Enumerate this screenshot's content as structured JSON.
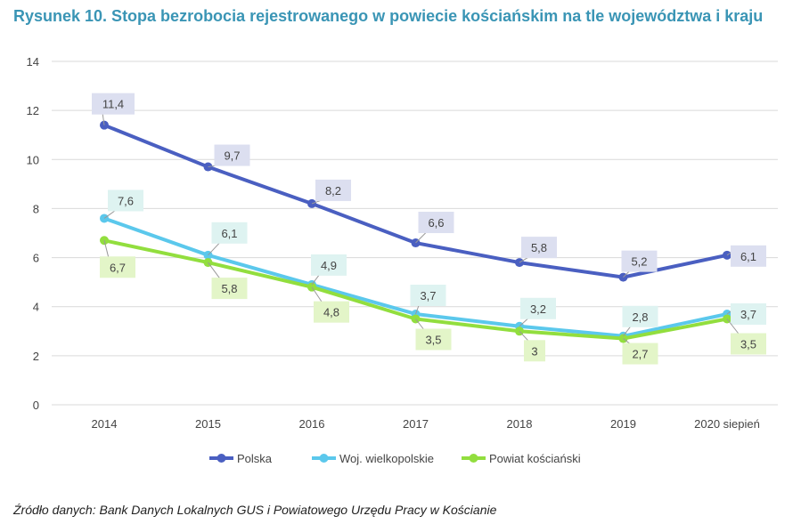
{
  "chart_data": {
    "type": "line",
    "title": "Rysunek 10. Stopa bezrobocia rejestrowanego w powiecie kościańskim na tle województwa i kraju",
    "categories": [
      "2014",
      "2015",
      "2016",
      "2017",
      "2018",
      "2019",
      "2020 siepień"
    ],
    "ylim": [
      0,
      14
    ],
    "yticks": [
      "0",
      "2",
      "4",
      "6",
      "8",
      "10",
      "12",
      "14"
    ],
    "grid": true,
    "legend": "bottom",
    "series": [
      {
        "name": "Polska",
        "color": "#4a5fc1",
        "label_bg": "#dcdff0",
        "values": [
          11.4,
          9.7,
          8.2,
          6.6,
          5.8,
          5.2,
          6.1
        ],
        "labels": [
          "11,4",
          "9,7",
          "8,2",
          "6,6",
          "5,8",
          "5,2",
          "6,1"
        ]
      },
      {
        "name": "Woj. wielkopolskie",
        "color": "#5bc8ec",
        "label_bg": "#def3f1",
        "values": [
          7.6,
          6.1,
          4.9,
          3.7,
          3.2,
          2.8,
          3.7
        ],
        "labels": [
          "7,6",
          "6,1",
          "4,9",
          "3,7",
          "3,2",
          "2,8",
          "3,7"
        ]
      },
      {
        "name": "Powiat kościański",
        "color": "#92de3e",
        "label_bg": "#e3f5c8",
        "values": [
          6.7,
          5.8,
          4.8,
          3.5,
          3.0,
          2.7,
          3.5
        ],
        "labels": [
          "6,7",
          "5,8",
          "4,8",
          "3,5",
          "3",
          "2,7",
          "3,5"
        ]
      }
    ]
  },
  "source": "Źródło danych: Bank Danych Lokalnych GUS i Powiatowego Urzędu Pracy w Kościanie"
}
